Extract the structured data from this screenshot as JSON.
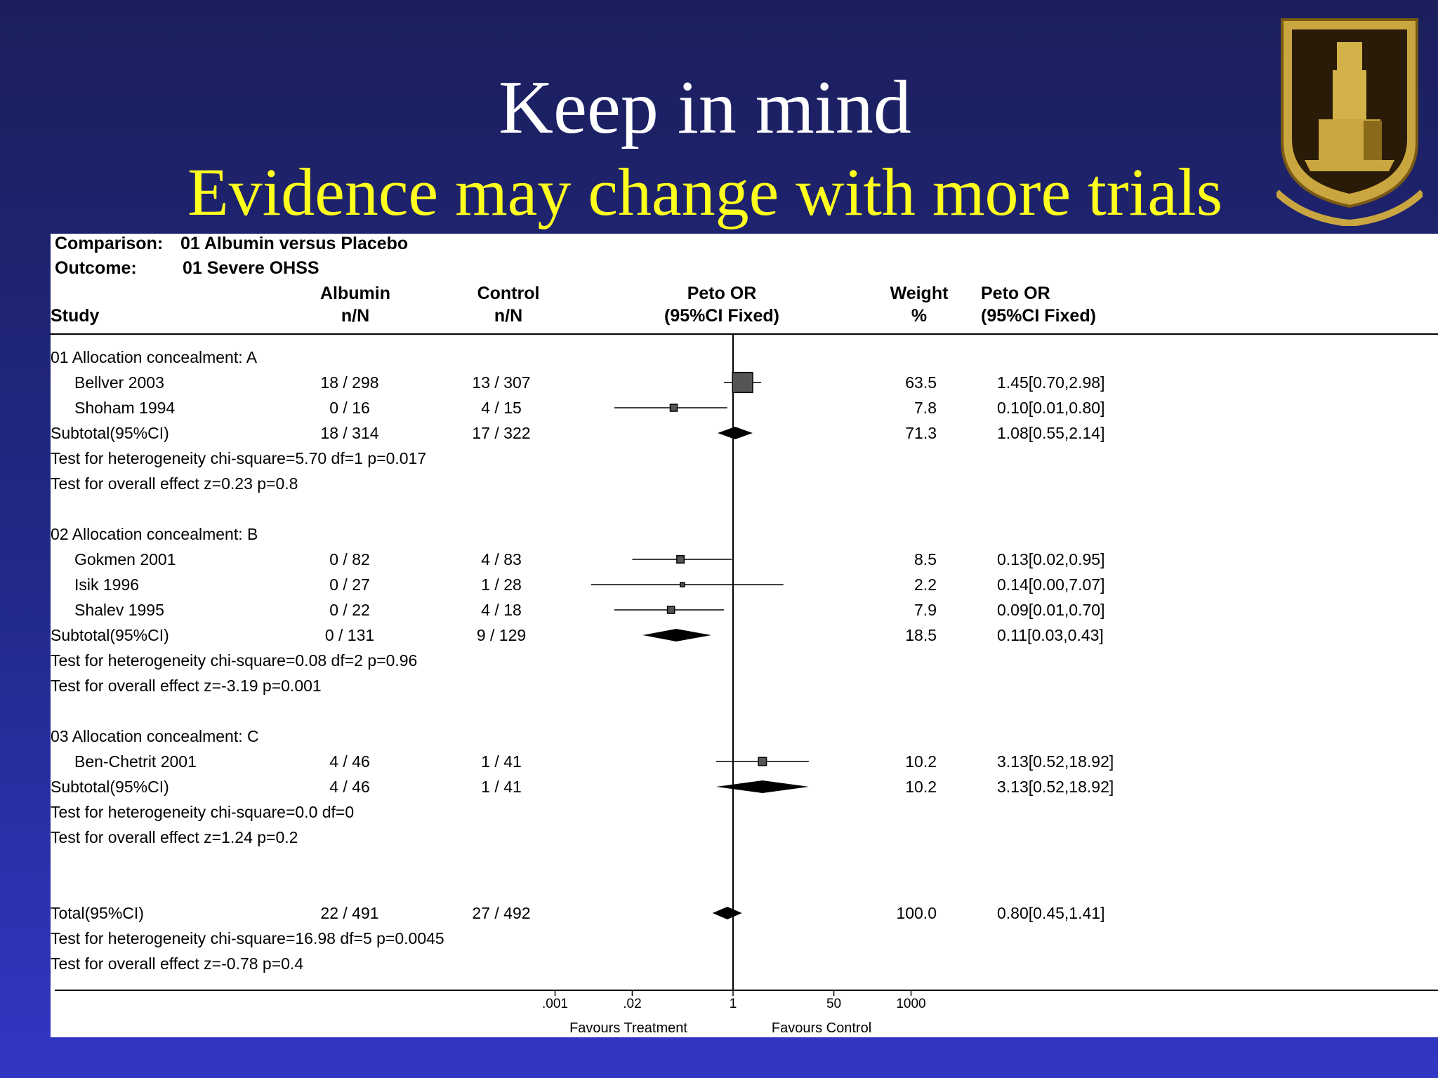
{
  "title": "Keep in mind",
  "subtitle": "Evidence may change with more trials",
  "logo": {
    "icon": "cairo-university-seal-icon",
    "colors": {
      "gold": "#c9a640",
      "dark": "#2a1a08"
    }
  },
  "colors": {
    "title": "#ffffff",
    "subtitle": "#ffff1e",
    "background": "#22298a"
  },
  "header": {
    "comparison_label": "Comparison:",
    "comparison_value": "01 Albumin versus Placebo",
    "outcome_label": "Outcome:",
    "outcome_value": "01 Severe OHSS",
    "col_study": "Study",
    "col_albumin": "Albumin",
    "col_albumin_sub": "n/N",
    "col_control": "Control",
    "col_control_sub": "n/N",
    "col_plot": "Peto OR",
    "col_plot_sub": "(95%CI Fixed)",
    "col_weight": "Weight",
    "col_weight_sub": "%",
    "col_or": "Peto OR",
    "col_or_sub": "(95%CI Fixed)"
  },
  "footer": {
    "favours_left": "Favours Treatment",
    "favours_right": "Favours Control"
  },
  "chart_data": {
    "type": "forest",
    "xscale": "log",
    "xlim": [
      0.001,
      1000
    ],
    "x_ticks": [
      0.001,
      0.02,
      1,
      50,
      1000
    ],
    "x_tick_labels": [
      ".001",
      ".02",
      "1",
      "50",
      "1000"
    ],
    "reference_line": 1,
    "rows": [
      {
        "kind": "group",
        "label": "01 Allocation concealment: A"
      },
      {
        "kind": "study",
        "label": "Bellver 2003",
        "albumin": "18 / 298",
        "control": "13 / 307",
        "or": 1.45,
        "lo": 0.7,
        "hi": 2.98,
        "weight": "63.5",
        "ci_text": "1.45[0.70,2.98]"
      },
      {
        "kind": "study",
        "label": "Shoham 1994",
        "albumin": "0 / 16",
        "control": "4 / 15",
        "or": 0.1,
        "lo": 0.01,
        "hi": 0.8,
        "weight": "7.8",
        "ci_text": "0.10[0.01,0.80]"
      },
      {
        "kind": "subtotal",
        "label": "Subtotal(95%CI)",
        "albumin": "18 / 314",
        "control": "17 / 322",
        "or": 1.08,
        "lo": 0.55,
        "hi": 2.14,
        "weight": "71.3",
        "ci_text": "1.08[0.55,2.14]"
      },
      {
        "kind": "text",
        "label": "Test for heterogeneity chi-square=5.70  df=1  p=0.017"
      },
      {
        "kind": "text",
        "label": "Test for overall effect  z=0.23  p=0.8"
      },
      {
        "kind": "blank"
      },
      {
        "kind": "group",
        "label": "02 Allocation concealment: B"
      },
      {
        "kind": "study",
        "label": "Gokmen 2001",
        "albumin": "0 / 82",
        "control": "4 / 83",
        "or": 0.13,
        "lo": 0.02,
        "hi": 0.95,
        "weight": "8.5",
        "ci_text": "0.13[0.02,0.95]"
      },
      {
        "kind": "study",
        "label": "Isik 1996",
        "albumin": "0 / 27",
        "control": "1 / 28",
        "or": 0.14,
        "lo": 0.0,
        "hi": 7.07,
        "weight": "2.2",
        "ci_text": "0.14[0.00,7.07]"
      },
      {
        "kind": "study",
        "label": "Shalev 1995",
        "albumin": "0 / 22",
        "control": "4 / 18",
        "or": 0.09,
        "lo": 0.01,
        "hi": 0.7,
        "weight": "7.9",
        "ci_text": "0.09[0.01,0.70]"
      },
      {
        "kind": "subtotal",
        "label": "Subtotal(95%CI)",
        "albumin": "0 / 131",
        "control": "9 / 129",
        "or": 0.11,
        "lo": 0.03,
        "hi": 0.43,
        "weight": "18.5",
        "ci_text": "0.11[0.03,0.43]"
      },
      {
        "kind": "text",
        "label": "Test for heterogeneity chi-square=0.08  df=2  p=0.96"
      },
      {
        "kind": "text",
        "label": "Test for overall effect  z=-3.19  p=0.001"
      },
      {
        "kind": "blank"
      },
      {
        "kind": "group",
        "label": "03 Allocation concealment: C"
      },
      {
        "kind": "study",
        "label": "Ben-Chetrit 2001",
        "albumin": "4 / 46",
        "control": "1 / 41",
        "or": 3.13,
        "lo": 0.52,
        "hi": 18.92,
        "weight": "10.2",
        "ci_text": "3.13[0.52,18.92]"
      },
      {
        "kind": "subtotal",
        "label": "Subtotal(95%CI)",
        "albumin": "4 / 46",
        "control": "1 / 41",
        "or": 3.13,
        "lo": 0.52,
        "hi": 18.92,
        "weight": "10.2",
        "ci_text": "3.13[0.52,18.92]"
      },
      {
        "kind": "text",
        "label": "Test for heterogeneity chi-square=0.0  df=0"
      },
      {
        "kind": "text",
        "label": "Test for overall effect  z=1.24  p=0.2"
      },
      {
        "kind": "blank"
      },
      {
        "kind": "blank"
      },
      {
        "kind": "total",
        "label": "Total(95%CI)",
        "albumin": "22 / 491",
        "control": "27 / 492",
        "or": 0.8,
        "lo": 0.45,
        "hi": 1.41,
        "weight": "100.0",
        "ci_text": "0.80[0.45,1.41]"
      },
      {
        "kind": "text",
        "label": "Test for heterogeneity chi-square=16.98  df=5  p=0.0045"
      },
      {
        "kind": "text",
        "label": "Test for overall effect  z=-0.78  p=0.4"
      }
    ]
  }
}
